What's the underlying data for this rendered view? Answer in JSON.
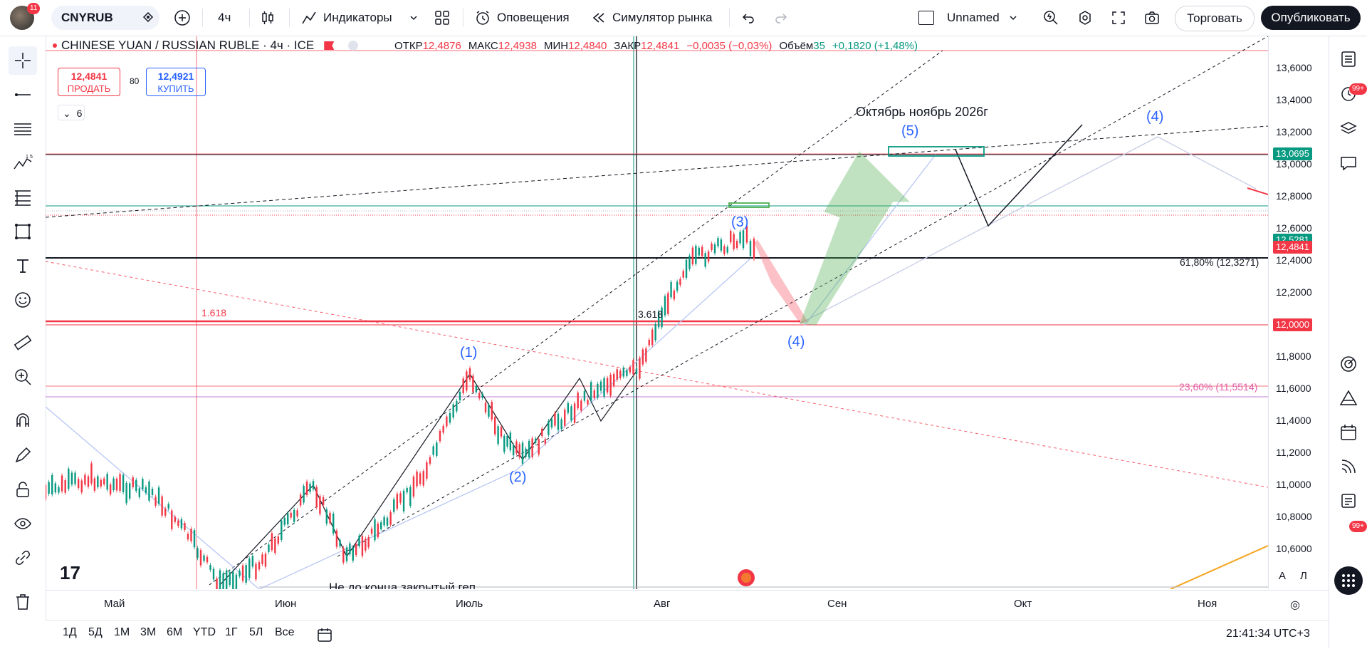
{
  "topbar": {
    "notifications_badge": "11",
    "symbol": "CNYRUB",
    "interval": "4ч",
    "indicators": "Индикаторы",
    "alerts": "Оповещения",
    "replay": "Симулятор рынка",
    "layout_name": "Unnamed",
    "trade": "Торговать",
    "publish": "Опубликовать"
  },
  "legend": {
    "title": "CHINESE YUAN / RUSSIAN RUBLE · 4ч · ICE",
    "open_label": "ОТКР",
    "open": "12,4876",
    "high_label": "МАКС",
    "high": "12,4938",
    "low_label": "МИН",
    "low": "12,4840",
    "close_label": "ЗАКР",
    "close": "12,4841",
    "change": "−0,0035 (−0,03%)",
    "volume_label": "Объём",
    "volume": "35",
    "volume_change": "+0,1820 (+1,48%)",
    "sell_price": "12,4841",
    "sell_label": "ПРОДАТЬ",
    "spread": "80",
    "buy_price": "12,4921",
    "buy_label": "КУПИТЬ",
    "collapsed_count": "6"
  },
  "annotations": {
    "target_text": "Октябрь ноябрь 2026г",
    "wave1": "(1)",
    "wave2": "(2)",
    "wave3": "(3)",
    "wave4": "(4)",
    "wave4b": "(4)",
    "wave5": "(5)",
    "fib_1618": "1.618",
    "fib_3618": "3.618",
    "fib_618": "61,80% (12,3271)",
    "fib_236": "23,60% (11,5514)",
    "gap_note": "Не до конца закрытый геп"
  },
  "price_axis": {
    "ticks": [
      "13,6000",
      "13,4000",
      "13,2000",
      "13,0000",
      "12,8000",
      "12,6000",
      "12,4000",
      "12,2000",
      "11,8000",
      "11,6000",
      "11,4000",
      "11,2000",
      "11,0000",
      "10,8000",
      "10,6000"
    ],
    "label_target": "13,0695",
    "label_green": "12,5281",
    "label_last": "12,4841",
    "label_12": "12,0000",
    "auto": "A",
    "log": "Л"
  },
  "time_axis": [
    "Май",
    "Июн",
    "Июль",
    "Авг",
    "Сен",
    "Окт",
    "Ноя"
  ],
  "bottom": {
    "ranges": [
      "1Д",
      "5Д",
      "1М",
      "3М",
      "6М",
      "YTD",
      "1Г",
      "5Л",
      "Все"
    ],
    "clock": "21:41:34 UTC+3"
  },
  "right_badges": {
    "alerts": "99+",
    "notifications": "99+"
  },
  "colors": {
    "red": "#f23645",
    "blue": "#2962ff",
    "green": "#089981",
    "dark": "#131722"
  }
}
